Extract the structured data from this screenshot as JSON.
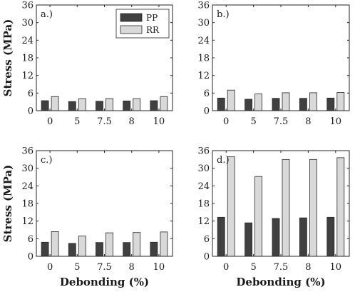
{
  "chart_data": [
    {
      "type": "bar",
      "panel_label": "a.)",
      "categories": [
        "0",
        "5",
        "7.5",
        "8",
        "10"
      ],
      "series": [
        {
          "name": "PP",
          "values": [
            3.4,
            3.1,
            3.2,
            3.3,
            3.4
          ]
        },
        {
          "name": "RR",
          "values": [
            4.8,
            4.1,
            4.1,
            4.1,
            4.8
          ]
        }
      ],
      "ylim": [
        0,
        36
      ],
      "yticks": [
        "0",
        "6",
        "12",
        "18",
        "24",
        "30",
        "36"
      ],
      "ylabel": "Stress (MPa)",
      "xlabel": "",
      "legend": "top-right",
      "grid": false
    },
    {
      "type": "bar",
      "panel_label": "b.)",
      "categories": [
        "0",
        "5",
        "7.5",
        "8",
        "10"
      ],
      "series": [
        {
          "name": "PP",
          "values": [
            4.3,
            3.9,
            4.2,
            4.2,
            4.3
          ]
        },
        {
          "name": "RR",
          "values": [
            7.0,
            5.7,
            6.1,
            6.1,
            6.2
          ]
        }
      ],
      "ylim": [
        0,
        36
      ],
      "yticks": [
        "0",
        "6",
        "12",
        "18",
        "24",
        "30",
        "36"
      ],
      "ylabel": "",
      "xlabel": "",
      "grid": false
    },
    {
      "type": "bar",
      "panel_label": "c.)",
      "categories": [
        "0",
        "5",
        "7.5",
        "8",
        "10"
      ],
      "series": [
        {
          "name": "PP",
          "values": [
            4.8,
            4.4,
            4.7,
            4.7,
            4.8
          ]
        },
        {
          "name": "RR",
          "values": [
            8.4,
            6.9,
            8.0,
            8.1,
            8.3
          ]
        }
      ],
      "ylim": [
        0,
        36
      ],
      "yticks": [
        "0",
        "6",
        "12",
        "18",
        "24",
        "30",
        "36"
      ],
      "ylabel": "Stress (MPa)",
      "xlabel": "Debonding (%)",
      "grid": false
    },
    {
      "type": "bar",
      "panel_label": "d.)",
      "categories": [
        "0",
        "5",
        "7.5",
        "8",
        "10"
      ],
      "series": [
        {
          "name": "PP",
          "values": [
            13.3,
            11.4,
            12.9,
            13.1,
            13.3
          ]
        },
        {
          "name": "RR",
          "values": [
            33.9,
            27.2,
            33.0,
            33.0,
            33.6
          ]
        }
      ],
      "ylim": [
        0,
        36
      ],
      "yticks": [
        "0",
        "6",
        "12",
        "18",
        "24",
        "30",
        "36"
      ],
      "ylabel": "",
      "xlabel": "Debonding (%)",
      "grid": false
    }
  ],
  "colors": {
    "PP": "#404040",
    "RR": "#d9d9d9",
    "axis": "#262626"
  }
}
